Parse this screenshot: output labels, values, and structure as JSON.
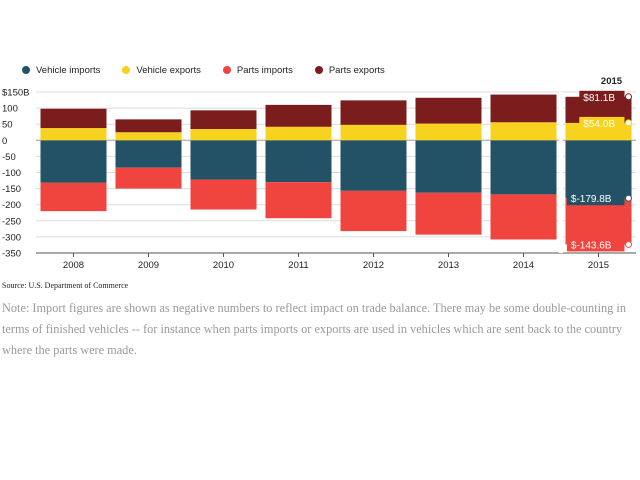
{
  "legend": [
    {
      "label": "Vehicle imports",
      "color": "#235267"
    },
    {
      "label": "Vehicle exports",
      "color": "#f7d21e"
    },
    {
      "label": "Parts imports",
      "color": "#f0443f"
    },
    {
      "label": "Parts exports",
      "color": "#7b1d1d"
    }
  ],
  "source": "Source: U.S. Department of Commerce",
  "note": "Note: Import figures are shown as negative numbers to reflect impact on trade balance. There may be some double-counting in terms of finished vehicles -- for instance when parts imports or exports are used in vehicles which are sent back to the country where the parts were made.",
  "chart_data": {
    "type": "bar",
    "stacked": true,
    "categories": [
      "2008",
      "2009",
      "2010",
      "2011",
      "2012",
      "2013",
      "2014",
      "2015"
    ],
    "series": [
      {
        "name": "Vehicle imports",
        "color": "#235267",
        "values": [
          -132,
          -85,
          -122,
          -130,
          -157,
          -163,
          -168,
          -179.8
        ]
      },
      {
        "name": "Vehicle exports",
        "color": "#f7d21e",
        "values": [
          38,
          25,
          35,
          42,
          48,
          52,
          56,
          54.0
        ]
      },
      {
        "name": "Parts imports",
        "color": "#f0443f",
        "values": [
          -88,
          -65,
          -93,
          -112,
          -125,
          -130,
          -140,
          -143.6
        ]
      },
      {
        "name": "Parts exports",
        "color": "#7b1d1d",
        "values": [
          60,
          40,
          58,
          68,
          76,
          80,
          86,
          81.1
        ]
      }
    ],
    "yticks": [
      150,
      100,
      50,
      0,
      -50,
      -100,
      -150,
      -200,
      -250,
      -300,
      -350
    ],
    "ytick_labels": [
      "$150B",
      "100",
      "50",
      "0",
      "-50",
      "-100",
      "-150",
      "-200",
      "-250",
      "-300",
      "-350"
    ],
    "ylim": [
      -350,
      150
    ],
    "grid": true,
    "highlight": {
      "category": "2015",
      "label": "2015",
      "annotations": [
        {
          "series": "Parts exports",
          "text": "$81.1B"
        },
        {
          "series": "Vehicle exports",
          "text": "$54.0B"
        },
        {
          "series": "Vehicle imports",
          "text": "$-179.8B"
        },
        {
          "series": "Parts imports",
          "text": "$-143.6B"
        }
      ]
    }
  }
}
